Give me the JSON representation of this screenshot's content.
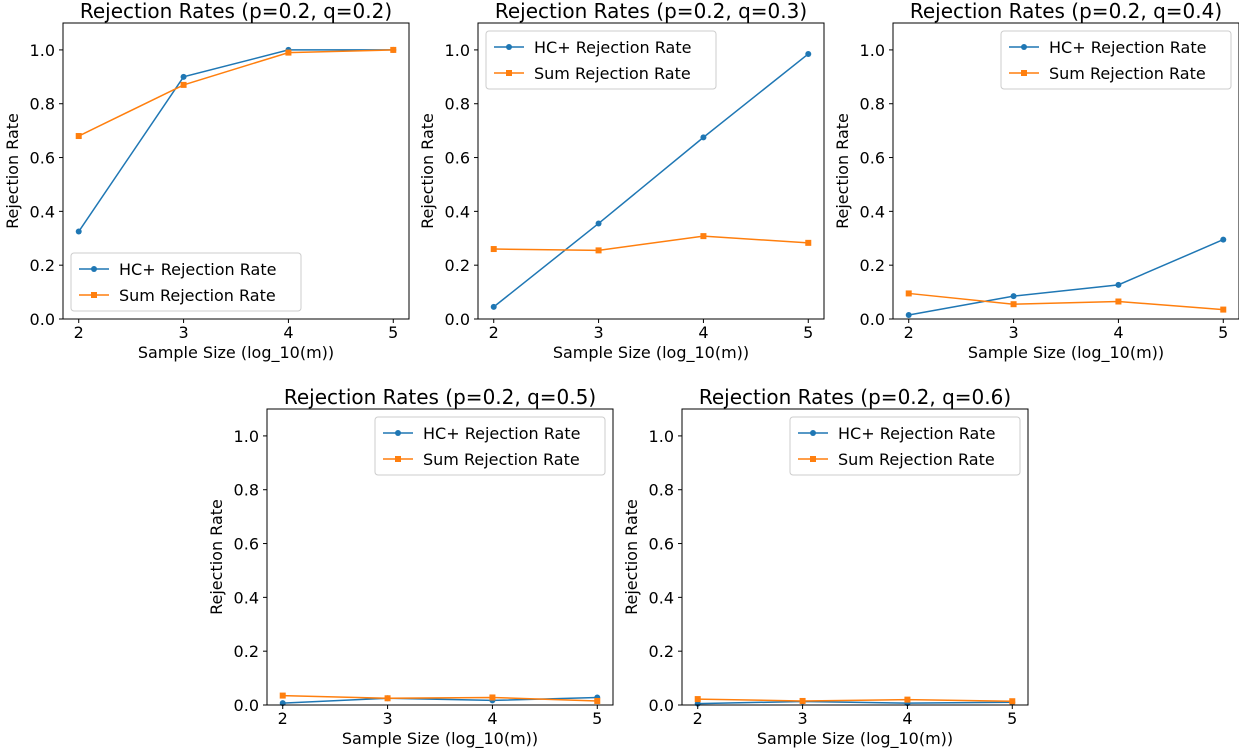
{
  "chart_data": [
    {
      "type": "line",
      "title": "Rejection Rates (p=0.2, q=0.2)",
      "xlabel": "Sample Size (log_10(m))",
      "ylabel": "Rejection Rate",
      "x": [
        2,
        3,
        4,
        5
      ],
      "xlim": [
        1.85,
        5.15
      ],
      "ylim": [
        0.0,
        1.1
      ],
      "yticks": [
        0.0,
        0.2,
        0.4,
        0.6,
        0.8,
        1.0
      ],
      "legend": "lower-left",
      "series": [
        {
          "name": "HC+ Rejection Rate",
          "marker": "circle",
          "color": "#1f77b4",
          "values": [
            0.325,
            0.9,
            1.0,
            1.0
          ]
        },
        {
          "name": "Sum Rejection Rate",
          "marker": "square",
          "color": "#ff7f0e",
          "values": [
            0.68,
            0.87,
            0.99,
            1.0
          ]
        }
      ]
    },
    {
      "type": "line",
      "title": "Rejection Rates (p=0.2, q=0.3)",
      "xlabel": "Sample Size (log_10(m))",
      "ylabel": "Rejection Rate",
      "x": [
        2,
        3,
        4,
        5
      ],
      "xlim": [
        1.85,
        5.15
      ],
      "ylim": [
        0.0,
        1.1
      ],
      "yticks": [
        0.0,
        0.2,
        0.4,
        0.6,
        0.8,
        1.0
      ],
      "legend": "top-left",
      "series": [
        {
          "name": "HC+ Rejection Rate",
          "marker": "circle",
          "color": "#1f77b4",
          "values": [
            0.045,
            0.355,
            0.675,
            0.985
          ]
        },
        {
          "name": "Sum Rejection Rate",
          "marker": "square",
          "color": "#ff7f0e",
          "values": [
            0.26,
            0.255,
            0.308,
            0.283
          ]
        }
      ]
    },
    {
      "type": "line",
      "title": "Rejection Rates (p=0.2, q=0.4)",
      "xlabel": "Sample Size (log_10(m))",
      "ylabel": "Rejection Rate",
      "x": [
        2,
        3,
        4,
        5
      ],
      "xlim": [
        1.85,
        5.15
      ],
      "ylim": [
        0.0,
        1.1
      ],
      "yticks": [
        0.0,
        0.2,
        0.4,
        0.6,
        0.8,
        1.0
      ],
      "legend": "top-right",
      "series": [
        {
          "name": "HC+ Rejection Rate",
          "marker": "circle",
          "color": "#1f77b4",
          "values": [
            0.015,
            0.085,
            0.127,
            0.295
          ]
        },
        {
          "name": "Sum Rejection Rate",
          "marker": "square",
          "color": "#ff7f0e",
          "values": [
            0.095,
            0.055,
            0.065,
            0.035
          ]
        }
      ]
    },
    {
      "type": "line",
      "title": "Rejection Rates (p=0.2, q=0.5)",
      "xlabel": "Sample Size (log_10(m))",
      "ylabel": "Rejection Rate",
      "x": [
        2,
        3,
        4,
        5
      ],
      "xlim": [
        1.85,
        5.15
      ],
      "ylim": [
        0.0,
        1.1
      ],
      "yticks": [
        0.0,
        0.2,
        0.4,
        0.6,
        0.8,
        1.0
      ],
      "legend": "top-right",
      "series": [
        {
          "name": "HC+ Rejection Rate",
          "marker": "circle",
          "color": "#1f77b4",
          "values": [
            0.007,
            0.025,
            0.017,
            0.028
          ]
        },
        {
          "name": "Sum Rejection Rate",
          "marker": "square",
          "color": "#ff7f0e",
          "values": [
            0.035,
            0.025,
            0.028,
            0.015
          ]
        }
      ]
    },
    {
      "type": "line",
      "title": "Rejection Rates (p=0.2, q=0.6)",
      "xlabel": "Sample Size (log_10(m))",
      "ylabel": "Rejection Rate",
      "x": [
        2,
        3,
        4,
        5
      ],
      "xlim": [
        1.85,
        5.15
      ],
      "ylim": [
        0.0,
        1.1
      ],
      "yticks": [
        0.0,
        0.2,
        0.4,
        0.6,
        0.8,
        1.0
      ],
      "legend": "top-right",
      "series": [
        {
          "name": "HC+ Rejection Rate",
          "marker": "circle",
          "color": "#1f77b4",
          "values": [
            0.005,
            0.013,
            0.007,
            0.01
          ]
        },
        {
          "name": "Sum Rejection Rate",
          "marker": "square",
          "color": "#ff7f0e",
          "values": [
            0.022,
            0.015,
            0.02,
            0.014
          ]
        }
      ]
    }
  ]
}
